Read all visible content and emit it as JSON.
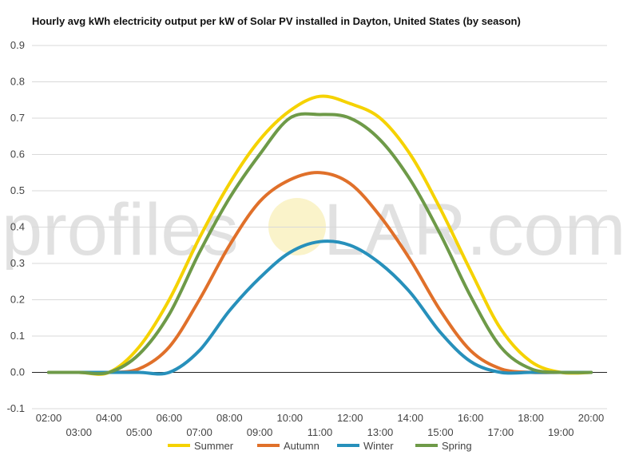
{
  "chart_data": {
    "type": "line",
    "title": "Hourly avg kWh electricity output per kW of Solar PV installed in Dayton, United States (by season)",
    "xlabel": "",
    "ylabel": "",
    "ylim": [
      -0.1,
      0.9
    ],
    "yticks": [
      "-0.1",
      "0.0",
      "0.1",
      "0.2",
      "0.3",
      "0.4",
      "0.5",
      "0.6",
      "0.7",
      "0.8",
      "0.9"
    ],
    "categories": [
      "02:00",
      "03:00",
      "04:00",
      "05:00",
      "06:00",
      "07:00",
      "08:00",
      "09:00",
      "10:00",
      "11:00",
      "12:00",
      "13:00",
      "14:00",
      "15:00",
      "16:00",
      "17:00",
      "18:00",
      "19:00",
      "20:00"
    ],
    "grid": true,
    "legend": "bottom",
    "series": [
      {
        "name": "Summer",
        "color": "#f5d200",
        "values": [
          0.0,
          0.0,
          0.0,
          0.07,
          0.2,
          0.37,
          0.52,
          0.64,
          0.72,
          0.76,
          0.74,
          0.7,
          0.6,
          0.45,
          0.28,
          0.12,
          0.03,
          0.0,
          0.0
        ]
      },
      {
        "name": "Autumn",
        "color": "#e0702a",
        "values": [
          0.0,
          0.0,
          0.0,
          0.01,
          0.07,
          0.2,
          0.35,
          0.47,
          0.53,
          0.55,
          0.52,
          0.43,
          0.31,
          0.17,
          0.06,
          0.01,
          0.0,
          0.0,
          0.0
        ]
      },
      {
        "name": "Winter",
        "color": "#2790bb",
        "values": [
          0.0,
          0.0,
          0.0,
          0.0,
          0.0,
          0.06,
          0.17,
          0.26,
          0.33,
          0.36,
          0.35,
          0.3,
          0.22,
          0.11,
          0.03,
          0.0,
          0.0,
          0.0,
          0.0
        ]
      },
      {
        "name": "Spring",
        "color": "#6e9a48",
        "values": [
          0.0,
          0.0,
          0.0,
          0.05,
          0.16,
          0.33,
          0.48,
          0.6,
          0.7,
          0.71,
          0.7,
          0.64,
          0.53,
          0.38,
          0.21,
          0.07,
          0.01,
          0.0,
          0.0
        ]
      }
    ]
  },
  "watermark": {
    "left": "profiles",
    "right": "LAR.com"
  }
}
